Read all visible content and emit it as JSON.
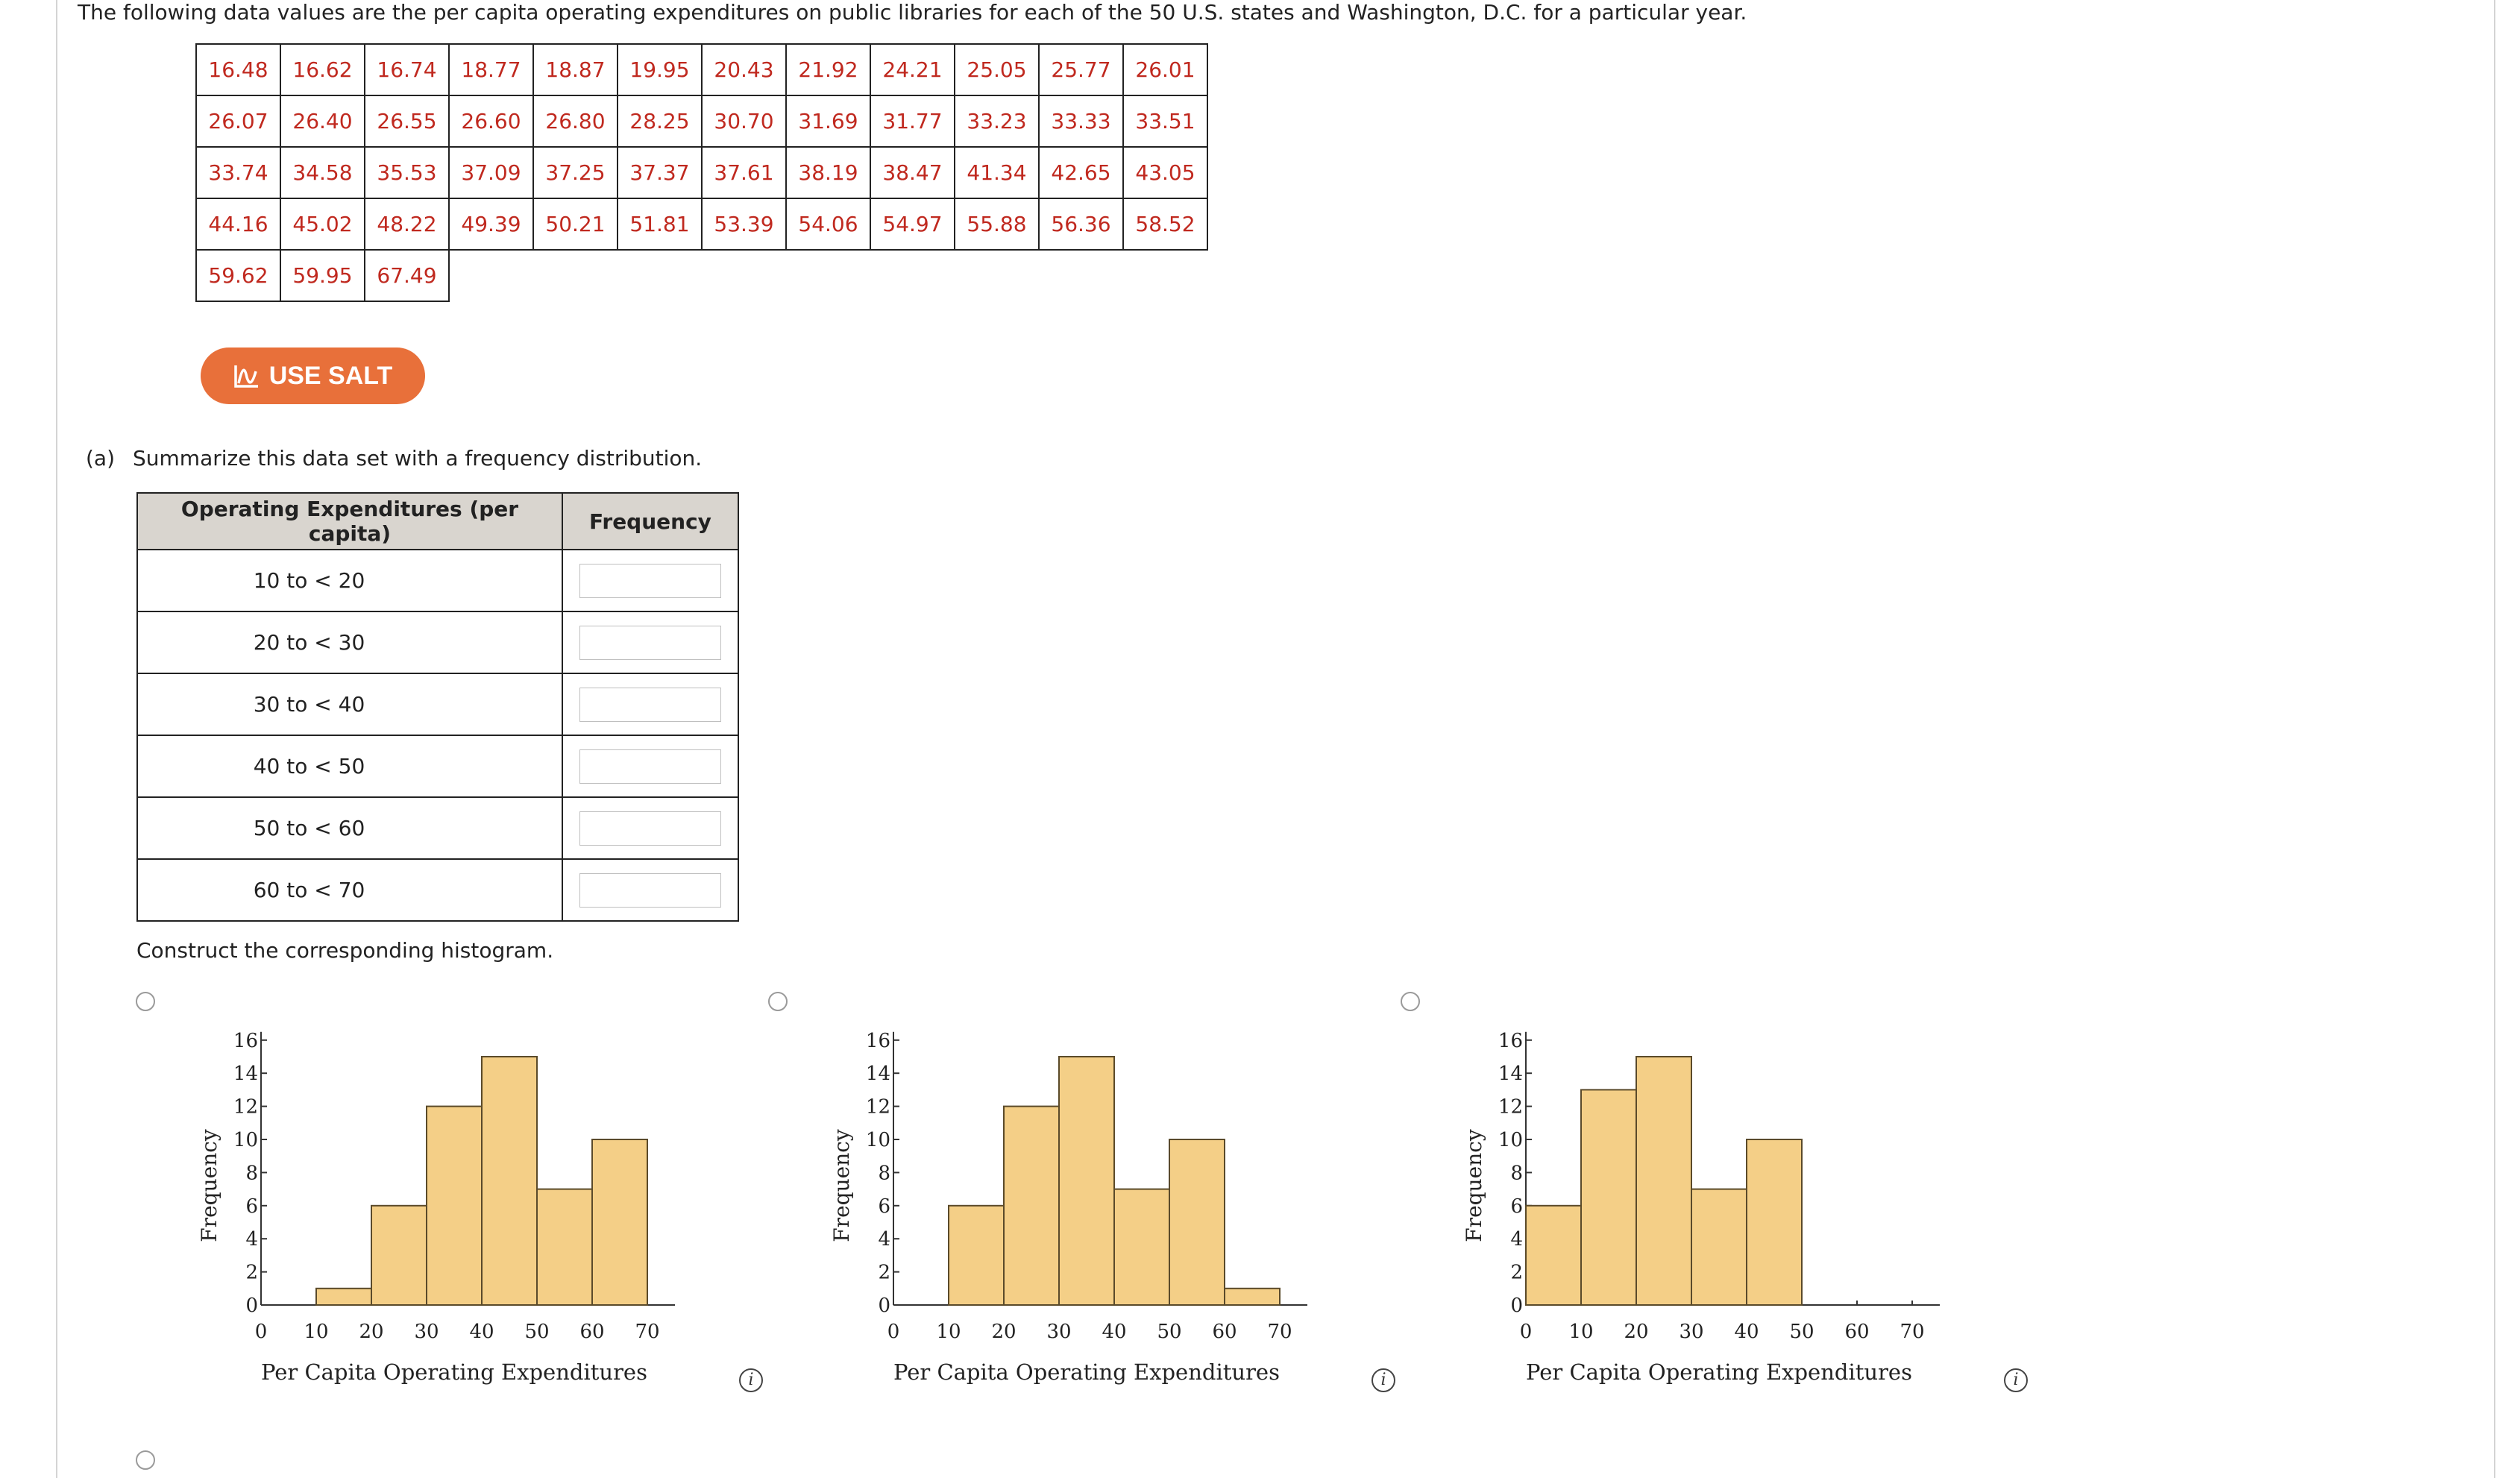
{
  "problem": {
    "text": "The following data values are the per capita operating expenditures on public libraries for each of the 50 U.S. states and Washington, D.C. for a particular year."
  },
  "data_values": [
    [
      "16.48",
      "16.62",
      "16.74",
      "18.77",
      "18.87",
      "19.95",
      "20.43",
      "21.92",
      "24.21",
      "25.05",
      "25.77",
      "26.01"
    ],
    [
      "26.07",
      "26.40",
      "26.55",
      "26.60",
      "26.80",
      "28.25",
      "30.70",
      "31.69",
      "31.77",
      "33.23",
      "33.33",
      "33.51"
    ],
    [
      "33.74",
      "34.58",
      "35.53",
      "37.09",
      "37.25",
      "37.37",
      "37.61",
      "38.19",
      "38.47",
      "41.34",
      "42.65",
      "43.05"
    ],
    [
      "44.16",
      "45.02",
      "48.22",
      "49.39",
      "50.21",
      "51.81",
      "53.39",
      "54.06",
      "54.97",
      "55.88",
      "56.36",
      "58.52"
    ],
    [
      "59.62",
      "59.95",
      "67.49"
    ]
  ],
  "salt_button": {
    "label": "USE SALT"
  },
  "part_a": {
    "label": "(a)",
    "prompt": "Summarize this data set with a frequency distribution."
  },
  "freq_table": {
    "col1_header": "Operating Expenditures (per capita)",
    "col2_header": "Frequency",
    "rows": [
      {
        "interval": "10 to < 20",
        "value": ""
      },
      {
        "interval": "20 to < 30",
        "value": ""
      },
      {
        "interval": "30 to < 40",
        "value": ""
      },
      {
        "interval": "40 to < 50",
        "value": ""
      },
      {
        "interval": "50 to < 60",
        "value": ""
      },
      {
        "interval": "60 to < 70",
        "value": ""
      }
    ]
  },
  "construct_text": "Construct the corresponding histogram.",
  "chart_data": [
    {
      "type": "bar",
      "ylabel": "Frequency",
      "xlabel": "Per Capita Operating Expenditures",
      "x_ticks": [
        "0",
        "10",
        "20",
        "30",
        "40",
        "50",
        "60",
        "70"
      ],
      "y_ticks": [
        "0",
        "2",
        "4",
        "6",
        "8",
        "10",
        "12",
        "14",
        "16"
      ],
      "ylim": [
        0,
        16
      ],
      "xlim": [
        0,
        70
      ],
      "bins": [
        [
          10,
          20
        ],
        [
          20,
          30
        ],
        [
          30,
          40
        ],
        [
          40,
          50
        ],
        [
          50,
          60
        ],
        [
          60,
          70
        ]
      ],
      "values": [
        1,
        6,
        12,
        15,
        7,
        10
      ],
      "bar_color": "#f4cf87"
    },
    {
      "type": "bar",
      "ylabel": "Frequency",
      "xlabel": "Per Capita Operating Expenditures",
      "x_ticks": [
        "0",
        "10",
        "20",
        "30",
        "40",
        "50",
        "60",
        "70"
      ],
      "y_ticks": [
        "0",
        "2",
        "4",
        "6",
        "8",
        "10",
        "12",
        "14",
        "16"
      ],
      "ylim": [
        0,
        16
      ],
      "xlim": [
        0,
        70
      ],
      "bins": [
        [
          10,
          20
        ],
        [
          20,
          30
        ],
        [
          30,
          40
        ],
        [
          40,
          50
        ],
        [
          50,
          60
        ],
        [
          60,
          70
        ]
      ],
      "values": [
        6,
        12,
        15,
        7,
        10,
        1
      ],
      "bar_color": "#f4cf87"
    },
    {
      "type": "bar",
      "ylabel": "Frequency",
      "xlabel": "Per Capita Operating Expenditures",
      "x_ticks": [
        "0",
        "10",
        "20",
        "30",
        "40",
        "50",
        "60",
        "70"
      ],
      "y_ticks": [
        "0",
        "2",
        "4",
        "6",
        "8",
        "10",
        "12",
        "14",
        "16"
      ],
      "ylim": [
        0,
        16
      ],
      "xlim": [
        0,
        70
      ],
      "bins": [
        [
          0,
          10
        ],
        [
          10,
          20
        ],
        [
          20,
          30
        ],
        [
          30,
          40
        ],
        [
          40,
          50
        ]
      ],
      "values": [
        6,
        13,
        15,
        7,
        10
      ],
      "bar_color": "#f4cf87"
    }
  ],
  "info_icon": {
    "glyph": "i"
  }
}
